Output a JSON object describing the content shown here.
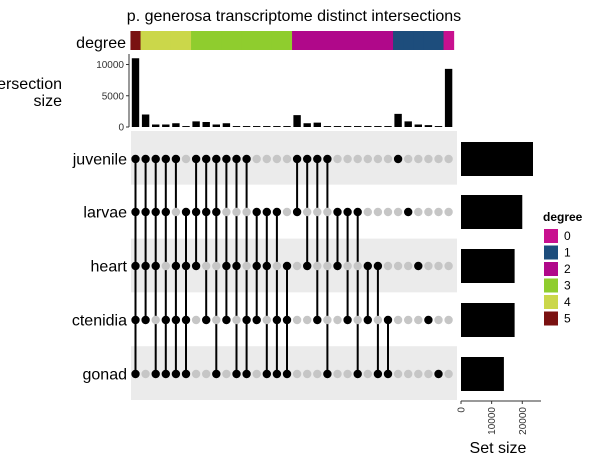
{
  "chart_data": {
    "type": "upset",
    "title": "p. generosa transcriptome distinct intersections",
    "degree_label": "degree",
    "intersection_ylabel": [
      "Intersection",
      "size"
    ],
    "intersection_ylim": [
      0,
      12000
    ],
    "intersection_yticks": [
      0,
      5000,
      10000
    ],
    "setsize_xlabel": "Set size",
    "setsize_xlim": [
      0,
      25000
    ],
    "setsize_xticks": [
      0,
      10000,
      20000
    ],
    "sets": [
      "juvenile",
      "larvae",
      "heart",
      "ctenidia",
      "gonad"
    ],
    "set_sizes": [
      23500,
      20000,
      17500,
      17500,
      14000
    ],
    "degree_colors": {
      "0": "#c8108f",
      "1": "#1d4d7c",
      "2": "#b0088a",
      "3": "#8fcd2e",
      "4": "#cbd74a",
      "5": "#7a1111"
    },
    "legend": {
      "title": "degree",
      "entries": [
        {
          "label": "0",
          "color": "#c8108f"
        },
        {
          "label": "1",
          "color": "#1d4d7c"
        },
        {
          "label": "2",
          "color": "#b0088a"
        },
        {
          "label": "3",
          "color": "#8fcd2e"
        },
        {
          "label": "4",
          "color": "#cbd74a"
        },
        {
          "label": "5",
          "color": "#7a1111"
        }
      ]
    },
    "intersections": [
      {
        "members": [
          1,
          1,
          1,
          1,
          1
        ],
        "size": 11000
      },
      {
        "members": [
          1,
          1,
          1,
          1,
          0
        ],
        "size": 2000
      },
      {
        "members": [
          1,
          1,
          1,
          0,
          1
        ],
        "size": 400
      },
      {
        "members": [
          1,
          1,
          0,
          1,
          1
        ],
        "size": 400
      },
      {
        "members": [
          1,
          0,
          1,
          1,
          1
        ],
        "size": 600
      },
      {
        "members": [
          0,
          1,
          1,
          1,
          1
        ],
        "size": 150
      },
      {
        "members": [
          1,
          1,
          1,
          0,
          0
        ],
        "size": 900
      },
      {
        "members": [
          1,
          1,
          0,
          1,
          0
        ],
        "size": 800
      },
      {
        "members": [
          1,
          1,
          0,
          0,
          1
        ],
        "size": 400
      },
      {
        "members": [
          1,
          0,
          1,
          1,
          0
        ],
        "size": 600
      },
      {
        "members": [
          1,
          0,
          1,
          0,
          1
        ],
        "size": 150
      },
      {
        "members": [
          1,
          0,
          0,
          1,
          1
        ],
        "size": 150
      },
      {
        "members": [
          0,
          1,
          1,
          1,
          0
        ],
        "size": 150
      },
      {
        "members": [
          0,
          1,
          1,
          0,
          1
        ],
        "size": 150
      },
      {
        "members": [
          0,
          1,
          0,
          1,
          1
        ],
        "size": 150
      },
      {
        "members": [
          0,
          0,
          1,
          1,
          1
        ],
        "size": 150
      },
      {
        "members": [
          1,
          1,
          0,
          0,
          0
        ],
        "size": 1900
      },
      {
        "members": [
          1,
          0,
          1,
          0,
          0
        ],
        "size": 600
      },
      {
        "members": [
          1,
          0,
          0,
          1,
          0
        ],
        "size": 700
      },
      {
        "members": [
          1,
          0,
          0,
          0,
          1
        ],
        "size": 150
      },
      {
        "members": [
          0,
          1,
          1,
          0,
          0
        ],
        "size": 150
      },
      {
        "members": [
          0,
          1,
          0,
          1,
          0
        ],
        "size": 150
      },
      {
        "members": [
          0,
          1,
          0,
          0,
          1
        ],
        "size": 150
      },
      {
        "members": [
          0,
          0,
          1,
          1,
          0
        ],
        "size": 150
      },
      {
        "members": [
          0,
          0,
          1,
          0,
          1
        ],
        "size": 150
      },
      {
        "members": [
          0,
          0,
          0,
          1,
          1
        ],
        "size": 150
      },
      {
        "members": [
          1,
          0,
          0,
          0,
          0
        ],
        "size": 2100
      },
      {
        "members": [
          0,
          1,
          0,
          0,
          0
        ],
        "size": 900
      },
      {
        "members": [
          0,
          0,
          1,
          0,
          0
        ],
        "size": 400
      },
      {
        "members": [
          0,
          0,
          0,
          1,
          0
        ],
        "size": 300
      },
      {
        "members": [
          0,
          0,
          0,
          0,
          1
        ],
        "size": 150
      },
      {
        "members": [
          0,
          0,
          0,
          0,
          0
        ],
        "size": 9300
      }
    ]
  }
}
